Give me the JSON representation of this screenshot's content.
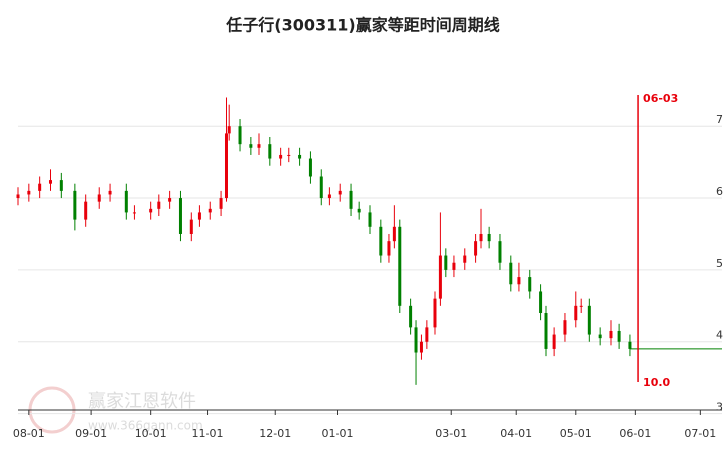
{
  "chart_data": {
    "type": "candlestick",
    "title": "任子行(300311)赢家等距时间周期线",
    "x": [
      0,
      4,
      8,
      12,
      16,
      21,
      25,
      30,
      34,
      40,
      43,
      49,
      52,
      56,
      60,
      64,
      67,
      71,
      75,
      77,
      78,
      82,
      86,
      89,
      93,
      97,
      100,
      104,
      108,
      112,
      115,
      119,
      123,
      126,
      130,
      134,
      137,
      139,
      141,
      145,
      147,
      149,
      151,
      154,
      156,
      158,
      161,
      165,
      169,
      171,
      174,
      178,
      182,
      185,
      189,
      193,
      195,
      198,
      202,
      206,
      208,
      211,
      215,
      219,
      222,
      226
    ],
    "open": [
      6.0,
      6.05,
      6.1,
      6.2,
      6.25,
      6.1,
      5.7,
      5.95,
      6.05,
      6.1,
      5.8,
      5.8,
      5.85,
      5.95,
      6.0,
      5.5,
      5.7,
      5.8,
      5.85,
      6.0,
      6.9,
      7.0,
      6.75,
      6.7,
      6.75,
      6.55,
      6.6,
      6.6,
      6.55,
      6.3,
      6.0,
      6.05,
      6.1,
      5.85,
      5.8,
      5.6,
      5.2,
      5.4,
      5.6,
      4.5,
      4.2,
      3.85,
      4.0,
      4.2,
      4.6,
      5.2,
      5.0,
      5.1,
      5.2,
      5.4,
      5.5,
      5.4,
      5.1,
      4.8,
      4.9,
      4.7,
      4.4,
      3.9,
      4.1,
      4.3,
      4.5,
      4.5,
      4.1,
      4.05,
      4.15,
      4.0
    ],
    "close": [
      6.05,
      6.1,
      6.2,
      6.25,
      6.1,
      5.7,
      5.95,
      6.05,
      6.1,
      5.8,
      5.8,
      5.85,
      5.95,
      6.0,
      5.5,
      5.7,
      5.8,
      5.85,
      6.0,
      6.9,
      7.0,
      6.75,
      6.7,
      6.75,
      6.55,
      6.6,
      6.6,
      6.55,
      6.3,
      6.0,
      6.05,
      6.1,
      5.85,
      5.8,
      5.6,
      5.2,
      5.4,
      5.6,
      4.5,
      4.2,
      3.85,
      4.0,
      4.2,
      4.6,
      5.2,
      5.0,
      5.1,
      5.2,
      5.4,
      5.5,
      5.4,
      5.1,
      4.8,
      4.9,
      4.7,
      4.4,
      3.9,
      4.1,
      4.3,
      4.5,
      4.5,
      4.1,
      4.05,
      4.15,
      4.0,
      3.9
    ],
    "high": [
      6.15,
      6.2,
      6.3,
      6.4,
      6.35,
      6.2,
      6.05,
      6.15,
      6.2,
      6.2,
      5.9,
      5.95,
      6.05,
      6.1,
      6.1,
      5.8,
      5.9,
      5.95,
      6.1,
      7.4,
      7.3,
      7.1,
      6.85,
      6.9,
      6.85,
      6.7,
      6.7,
      6.7,
      6.65,
      6.4,
      6.15,
      6.2,
      6.2,
      5.95,
      5.9,
      5.7,
      5.5,
      5.9,
      5.7,
      4.6,
      4.3,
      4.1,
      4.3,
      4.7,
      5.8,
      5.3,
      5.2,
      5.3,
      5.5,
      5.85,
      5.6,
      5.5,
      5.2,
      5.1,
      5.0,
      4.8,
      4.5,
      4.2,
      4.4,
      4.7,
      4.6,
      4.6,
      4.2,
      4.3,
      4.25,
      4.1
    ],
    "low": [
      5.9,
      5.95,
      6.0,
      6.1,
      6.0,
      5.55,
      5.6,
      5.85,
      5.95,
      5.7,
      5.7,
      5.7,
      5.75,
      5.85,
      5.4,
      5.4,
      5.6,
      5.7,
      5.75,
      5.95,
      6.8,
      6.65,
      6.6,
      6.6,
      6.45,
      6.45,
      6.5,
      6.45,
      6.2,
      5.9,
      5.9,
      5.95,
      5.75,
      5.7,
      5.5,
      5.1,
      5.1,
      5.3,
      4.4,
      4.1,
      3.4,
      3.75,
      3.9,
      4.1,
      4.5,
      4.9,
      4.9,
      5.0,
      5.1,
      5.3,
      5.3,
      5.0,
      4.7,
      4.7,
      4.6,
      4.3,
      3.8,
      3.8,
      4.0,
      4.2,
      4.4,
      4.0,
      3.95,
      3.95,
      3.9,
      3.8
    ],
    "up_color": "#e8000b",
    "down_color": "#008000",
    "xlim": [
      0,
      260
    ],
    "xticks": [
      {
        "value": 4,
        "label": "08-01"
      },
      {
        "value": 27,
        "label": "09-01"
      },
      {
        "value": 49,
        "label": "10-01"
      },
      {
        "value": 70,
        "label": "11-01"
      },
      {
        "value": 95,
        "label": "12-01"
      },
      {
        "value": 118,
        "label": "01-01"
      },
      {
        "value": 160,
        "label": "03-01"
      },
      {
        "value": 184,
        "label": "04-01"
      },
      {
        "value": 206,
        "label": "05-01"
      },
      {
        "value": 228,
        "label": "06-01"
      },
      {
        "value": 252,
        "label": "07-01"
      }
    ],
    "ylim": [
      3.05,
      8.2
    ],
    "yticks": [
      3,
      4,
      5,
      6,
      7
    ],
    "grid": true,
    "cycle_line": {
      "x": 229,
      "label": "06-03",
      "value_label": "10.0",
      "color": "#e8000b"
    },
    "watermark": "赢家江恩软件",
    "watermark_url": "www.366gann.com"
  }
}
